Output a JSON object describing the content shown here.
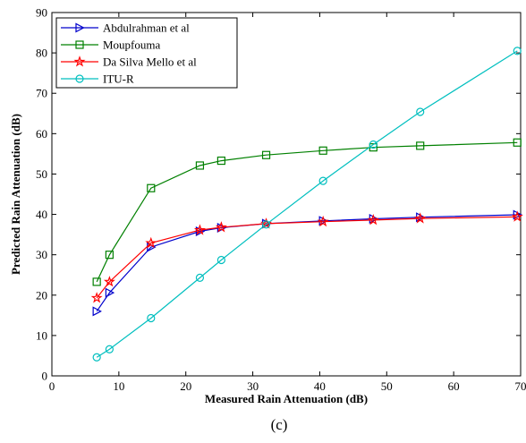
{
  "chart_data": {
    "type": "line",
    "xlabel": "Measured Rain Attenuation (dB)",
    "ylabel": "Predicted Rain Attenuation (dB)",
    "xlim": [
      0,
      70
    ],
    "ylim": [
      0,
      90
    ],
    "xticks": [
      "0",
      "10",
      "20",
      "30",
      "40",
      "50",
      "60",
      "70"
    ],
    "yticks": [
      "0",
      "10",
      "20",
      "30",
      "40",
      "50",
      "60",
      "70",
      "80",
      "90"
    ],
    "grid": false,
    "legend_position": "top-left",
    "caption": "(c)",
    "x": [
      6.7,
      8.6,
      14.8,
      22.1,
      25.3,
      32.0,
      40.5,
      48.0,
      55.0,
      69.5
    ],
    "series": [
      {
        "name": "Abdulrahman et al",
        "color": "#0000CC",
        "marker": "triangle-right",
        "values": [
          16.0,
          20.6,
          31.9,
          35.8,
          36.7,
          37.7,
          38.4,
          38.9,
          39.3,
          39.9
        ]
      },
      {
        "name": "Moupfouma",
        "color": "#008000",
        "marker": "square",
        "values": [
          23.3,
          30.0,
          46.5,
          52.1,
          53.3,
          54.7,
          55.8,
          56.6,
          57.0,
          57.8
        ]
      },
      {
        "name": "Da Silva Mello et al",
        "color": "#FF0000",
        "marker": "star",
        "values": [
          19.3,
          23.3,
          32.9,
          36.1,
          36.8,
          37.7,
          38.2,
          38.6,
          39.0,
          39.4
        ]
      },
      {
        "name": "ITU-R",
        "color": "#00BFBF",
        "marker": "circle",
        "values": [
          4.6,
          6.6,
          14.3,
          24.3,
          28.7,
          37.5,
          48.3,
          57.3,
          65.4,
          80.5
        ]
      }
    ]
  }
}
